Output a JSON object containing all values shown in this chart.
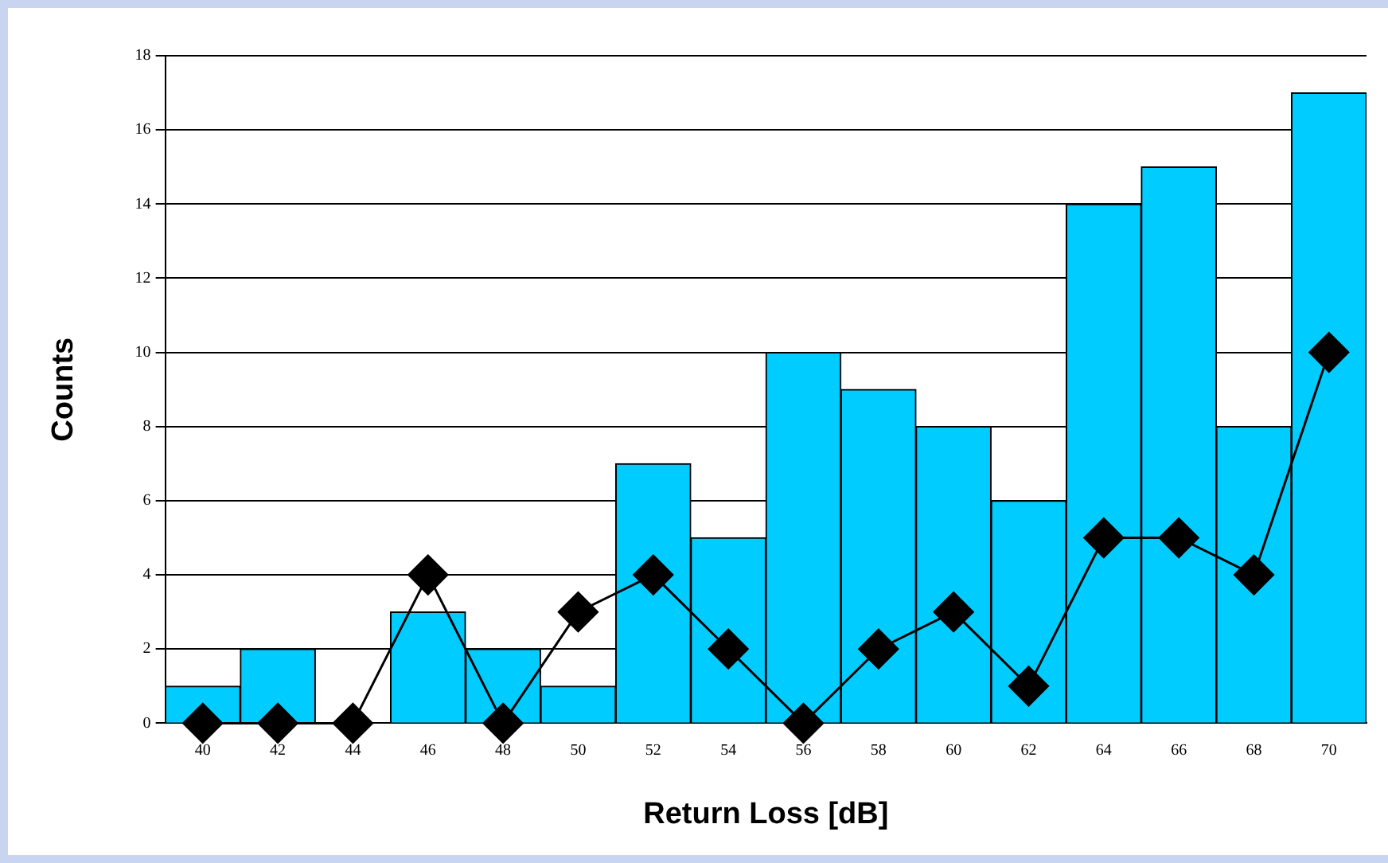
{
  "chart_data": {
    "type": "bar",
    "xlabel": "Return Loss [dB]",
    "ylabel": "Counts",
    "categories": [
      "40",
      "42",
      "44",
      "46",
      "48",
      "50",
      "52",
      "54",
      "56",
      "58",
      "60",
      "62",
      "64",
      "66",
      "68",
      "70"
    ],
    "series": [
      {
        "color": "#00ccff",
        "values": [
          1,
          2,
          0,
          3,
          2,
          1,
          7,
          5,
          10,
          9,
          8,
          6,
          14,
          15,
          8,
          17
        ]
      },
      {
        "type": "line",
        "color": "#000000",
        "values": [
          0,
          0,
          0,
          4,
          0,
          3,
          4,
          2,
          0,
          2,
          3,
          1,
          5,
          5,
          4,
          10
        ]
      }
    ],
    "ylim": [
      0,
      18
    ],
    "yticks": [
      0,
      2,
      4,
      6,
      8,
      10,
      12,
      14,
      16,
      18
    ],
    "grid": "y",
    "legend": false,
    "marker": "diamond",
    "line_style": "solid"
  }
}
